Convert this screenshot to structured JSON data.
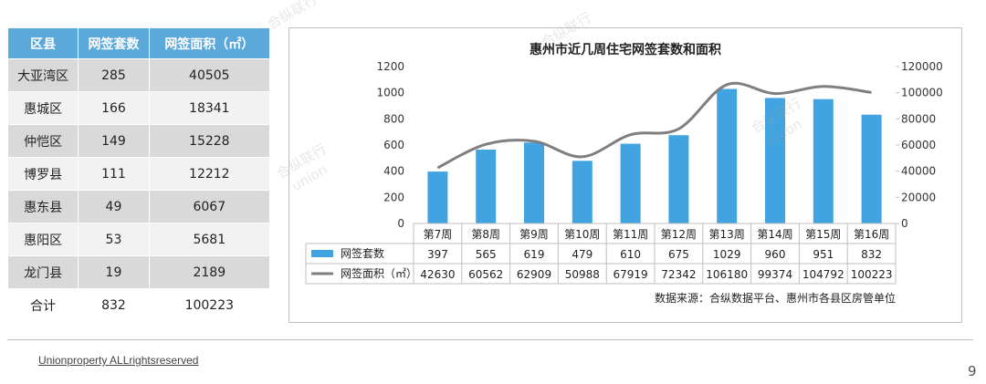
{
  "table": {
    "headers": [
      "区县",
      "网签套数",
      "网签面积（㎡）"
    ],
    "rows": [
      [
        "大亚湾区",
        "285",
        "40505"
      ],
      [
        "惠城区",
        "166",
        "18341"
      ],
      [
        "仲恺区",
        "149",
        "15228"
      ],
      [
        "博罗县",
        "111",
        "12212"
      ],
      [
        "惠东县",
        "49",
        "6067"
      ],
      [
        "惠阳区",
        "53",
        "5681"
      ],
      [
        "龙门县",
        "19",
        "2189"
      ],
      [
        "合计",
        "832",
        "100223"
      ]
    ]
  },
  "chart_data": {
    "type": "bar",
    "title": "惠州市近几周住宅网签套数和面积",
    "categories": [
      "第7周",
      "第8周",
      "第9周",
      "第10周",
      "第11周",
      "第12周",
      "第13周",
      "第14周",
      "第15周",
      "第16周"
    ],
    "series": [
      {
        "name": "网签套数",
        "type": "bar",
        "axis": "left",
        "color": "#41A4E0",
        "values": [
          397,
          565,
          619,
          479,
          610,
          675,
          1029,
          960,
          951,
          832
        ]
      },
      {
        "name": "网签面积（㎡）",
        "type": "line",
        "axis": "right",
        "color": "#7F7F7F",
        "values": [
          42630,
          60562,
          62909,
          50988,
          67919,
          72342,
          106180,
          99374,
          104792,
          100223
        ]
      }
    ],
    "ylim_left": [
      0,
      1200
    ],
    "yticks_left": [
      "0",
      "200",
      "400",
      "600",
      "800",
      "1000",
      "1200"
    ],
    "ylim_right": [
      0,
      120000
    ],
    "yticks_right": [
      "0",
      "20000",
      "40000",
      "60000",
      "80000",
      "100000",
      "120000"
    ],
    "grid": false,
    "legend": "data-table",
    "source": "数据来源：合纵数据平台、惠州市各县区房管单位"
  },
  "footer": {
    "copyright": "Unionproperty ALLrightsreserved",
    "page": "9"
  },
  "watermark": [
    "合纵联行",
    "union"
  ]
}
